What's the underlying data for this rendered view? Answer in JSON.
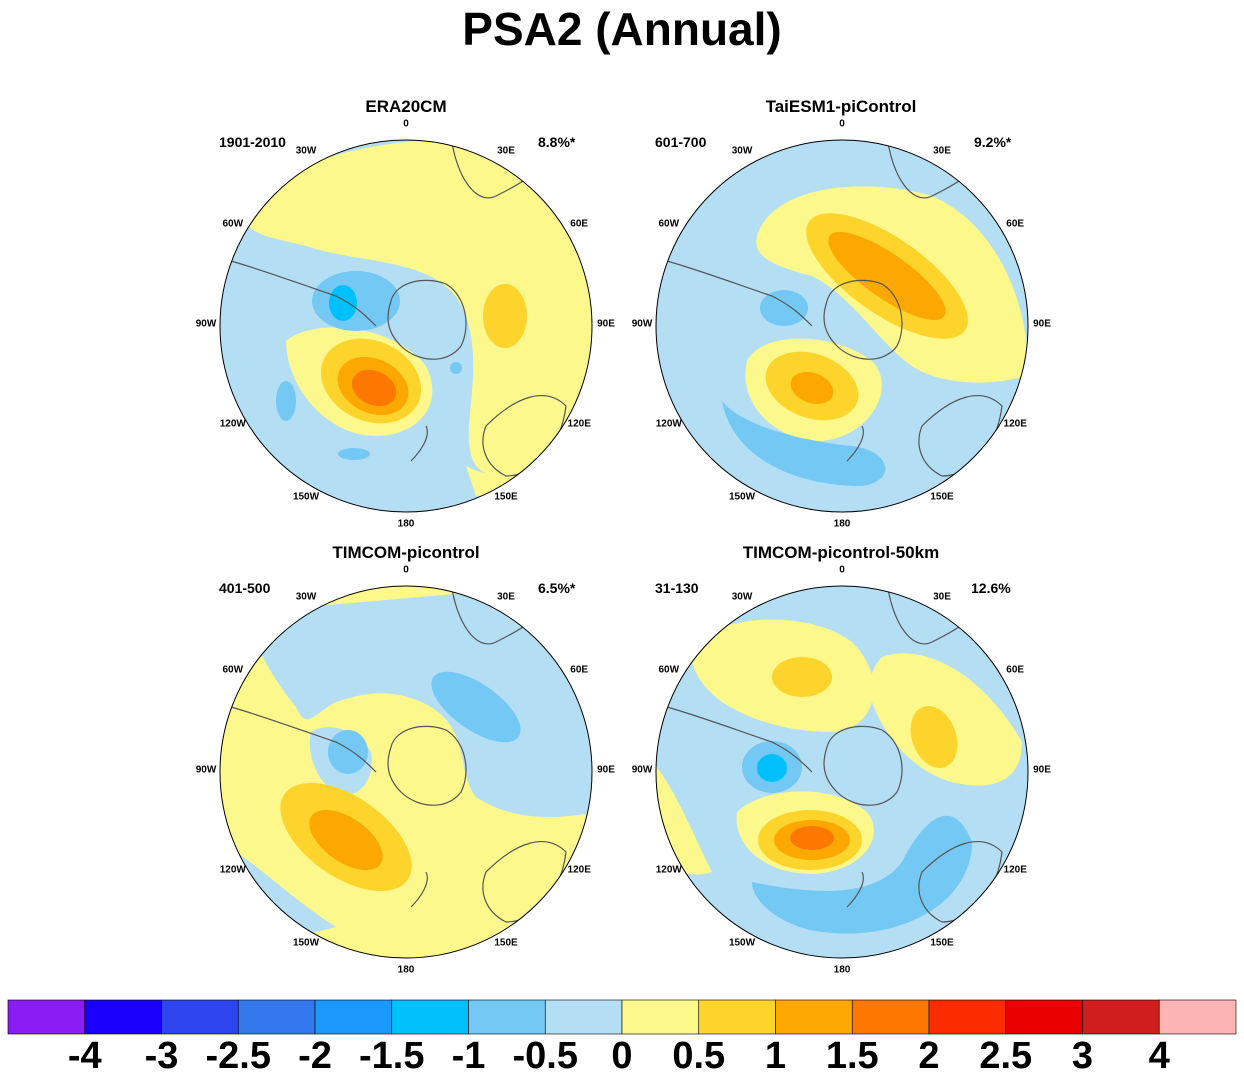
{
  "title": "PSA2 (Annual)",
  "panels": [
    {
      "name": "ERA20CM",
      "period": "1901-2010",
      "variance": "8.8%*"
    },
    {
      "name": "TaiESM1-piControl",
      "period": "601-700",
      "variance": "9.2%*"
    },
    {
      "name": "TIMCOM-picontrol",
      "period": "401-500",
      "variance": "6.5%*"
    },
    {
      "name": "TIMCOM-picontrol-50km",
      "period": "31-130",
      "variance": "12.6%"
    }
  ],
  "longitude_labels": [
    "0",
    "30E",
    "60E",
    "90E",
    "120E",
    "150E",
    "180",
    "150W",
    "120W",
    "90W",
    "60W",
    "30W"
  ],
  "colorbar": {
    "labels": [
      "-4",
      "-3",
      "-2.5",
      "-2",
      "-1.5",
      "-1",
      "-0.5",
      "0",
      "0.5",
      "1",
      "1.5",
      "2",
      "2.5",
      "3",
      "4"
    ],
    "colors": [
      "#8a1ef2",
      "#1a00fa",
      "#2c45ee",
      "#3378ec",
      "#1a98fc",
      "#00c0fc",
      "#74c8f4",
      "#b4def4",
      "#fcf88c",
      "#fcd42c",
      "#fca800",
      "#fc7800",
      "#fc2c00",
      "#ea0000",
      "#d01e1e",
      "#fcb4b4"
    ]
  },
  "colors": {
    "neg05": "#b4def4",
    "neg1": "#74c8f4",
    "neg15": "#00c0fc",
    "pos05": "#fcf88c",
    "pos1": "#fcd42c",
    "pos15": "#fca800",
    "pos2": "#fc7800",
    "coast": "#555555"
  }
}
